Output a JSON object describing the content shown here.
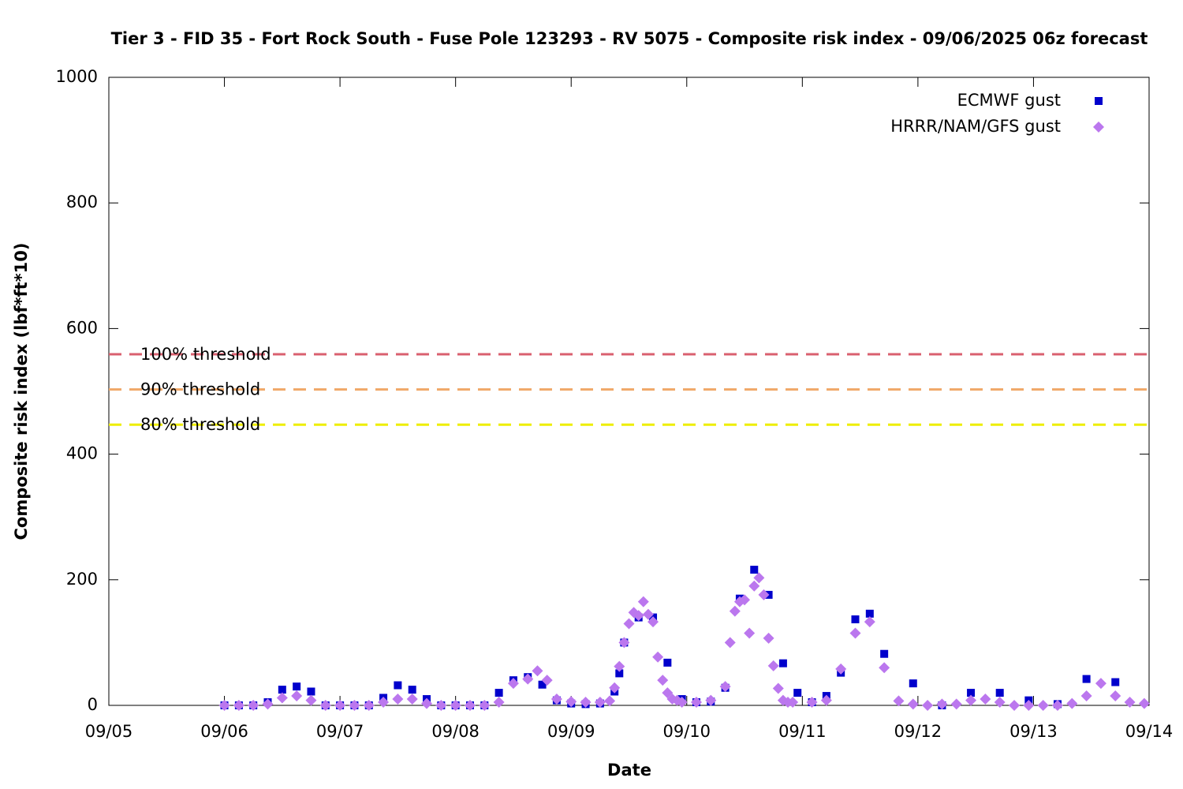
{
  "chart_data": {
    "type": "scatter",
    "title": "Tier 3 - FID 35 - Fort Rock South - Fuse Pole 123293 - RV 5075 - Composite risk index - 09/06/2025 06z forecast",
    "xlabel": "Date",
    "ylabel": "Composite risk index (lbf*ft*10)",
    "xlim": [
      "09/05",
      "09/14"
    ],
    "xticks": [
      "09/05",
      "09/06",
      "09/07",
      "09/08",
      "09/09",
      "09/10",
      "09/11",
      "09/12",
      "09/13",
      "09/14"
    ],
    "ylim": [
      0,
      1000
    ],
    "yticks": [
      0,
      200,
      400,
      600,
      800,
      1000
    ],
    "legend": "upper right",
    "thresholds": [
      {
        "label": "100% threshold",
        "value": 559,
        "color": "#d9606f"
      },
      {
        "label": "90% threshold",
        "value": 503,
        "color": "#f0a868"
      },
      {
        "label": "80% threshold",
        "value": 447,
        "color": "#eeee00"
      }
    ],
    "series": [
      {
        "name": "ECMWF gust",
        "color": "#0000cc",
        "marker": "square",
        "x": [
          "09/06 00:00",
          "09/06 03:00",
          "09/06 06:00",
          "09/06 09:00",
          "09/06 12:00",
          "09/06 15:00",
          "09/06 18:00",
          "09/06 21:00",
          "09/07 00:00",
          "09/07 03:00",
          "09/07 06:00",
          "09/07 09:00",
          "09/07 12:00",
          "09/07 15:00",
          "09/07 18:00",
          "09/07 21:00",
          "09/08 00:00",
          "09/08 03:00",
          "09/08 06:00",
          "09/08 09:00",
          "09/08 12:00",
          "09/08 15:00",
          "09/08 18:00",
          "09/08 21:00",
          "09/09 00:00",
          "09/09 03:00",
          "09/09 06:00",
          "09/09 09:00",
          "09/09 10:00",
          "09/09 11:00",
          "09/09 14:00",
          "09/09 17:00",
          "09/09 20:00",
          "09/09 23:00",
          "09/10 02:00",
          "09/10 05:00",
          "09/10 08:00",
          "09/10 11:00",
          "09/10 14:00",
          "09/10 17:00",
          "09/10 20:00",
          "09/10 23:00",
          "09/11 02:00",
          "09/11 05:00",
          "09/11 08:00",
          "09/11 11:00",
          "09/11 14:00",
          "09/11 17:00",
          "09/11 23:00",
          "09/12 05:00",
          "09/12 11:00",
          "09/12 17:00",
          "09/12 23:00",
          "09/13 05:00",
          "09/13 11:00",
          "09/13 17:00"
        ],
        "values": [
          0,
          0,
          0,
          5,
          25,
          30,
          22,
          0,
          0,
          0,
          0,
          12,
          32,
          25,
          10,
          0,
          0,
          0,
          0,
          20,
          40,
          45,
          33,
          8,
          3,
          2,
          3,
          22,
          51,
          100,
          140,
          140,
          68,
          10,
          5,
          6,
          28,
          170,
          216,
          176,
          67,
          20,
          5,
          15,
          52,
          137,
          146,
          82,
          35,
          0,
          20,
          20,
          8,
          2,
          42,
          37
        ]
      },
      {
        "name": "HRRR/NAM/GFS gust",
        "color": "#bb77ee",
        "marker": "diamond",
        "x": [
          "09/06 00:00",
          "09/06 03:00",
          "09/06 06:00",
          "09/06 09:00",
          "09/06 12:00",
          "09/06 15:00",
          "09/06 18:00",
          "09/06 21:00",
          "09/07 00:00",
          "09/07 03:00",
          "09/07 06:00",
          "09/07 09:00",
          "09/07 12:00",
          "09/07 15:00",
          "09/07 18:00",
          "09/07 21:00",
          "09/08 00:00",
          "09/08 03:00",
          "09/08 06:00",
          "09/08 09:00",
          "09/08 12:00",
          "09/08 15:00",
          "09/08 17:00",
          "09/08 19:00",
          "09/08 21:00",
          "09/09 00:00",
          "09/09 03:00",
          "09/09 06:00",
          "09/09 08:00",
          "09/09 09:00",
          "09/09 10:00",
          "09/09 11:00",
          "09/09 12:00",
          "09/09 13:00",
          "09/09 14:00",
          "09/09 15:00",
          "09/09 16:00",
          "09/09 17:00",
          "09/09 18:00",
          "09/09 19:00",
          "09/09 20:00",
          "09/09 21:00",
          "09/09 22:00",
          "09/09 23:00",
          "09/10 02:00",
          "09/10 05:00",
          "09/10 08:00",
          "09/10 09:00",
          "09/10 10:00",
          "09/10 11:00",
          "09/10 12:00",
          "09/10 13:00",
          "09/10 14:00",
          "09/10 15:00",
          "09/10 16:00",
          "09/10 17:00",
          "09/10 18:00",
          "09/10 19:00",
          "09/10 20:00",
          "09/10 21:00",
          "09/10 22:00",
          "09/11 02:00",
          "09/11 05:00",
          "09/11 08:00",
          "09/11 11:00",
          "09/11 14:00",
          "09/11 17:00",
          "09/11 20:00",
          "09/11 23:00",
          "09/12 02:00",
          "09/12 05:00",
          "09/12 08:00",
          "09/12 11:00",
          "09/12 14:00",
          "09/12 17:00",
          "09/12 20:00",
          "09/12 23:00",
          "09/13 02:00",
          "09/13 05:00",
          "09/13 08:00",
          "09/13 11:00",
          "09/13 14:00",
          "09/13 17:00",
          "09/13 20:00",
          "09/13 23:00"
        ],
        "values": [
          0,
          0,
          0,
          2,
          12,
          15,
          8,
          0,
          0,
          0,
          0,
          5,
          10,
          10,
          3,
          0,
          0,
          0,
          0,
          5,
          35,
          42,
          55,
          40,
          10,
          6,
          5,
          5,
          7,
          28,
          62,
          100,
          130,
          148,
          143,
          165,
          145,
          133,
          77,
          40,
          20,
          10,
          8,
          5,
          5,
          8,
          30,
          100,
          150,
          165,
          168,
          115,
          190,
          203,
          176,
          107,
          63,
          27,
          8,
          5,
          5,
          5,
          8,
          58,
          115,
          133,
          60,
          7,
          2,
          0,
          2,
          2,
          8,
          10,
          5,
          0,
          0,
          0,
          0,
          3,
          15,
          35,
          15,
          5,
          3
        ]
      }
    ]
  }
}
